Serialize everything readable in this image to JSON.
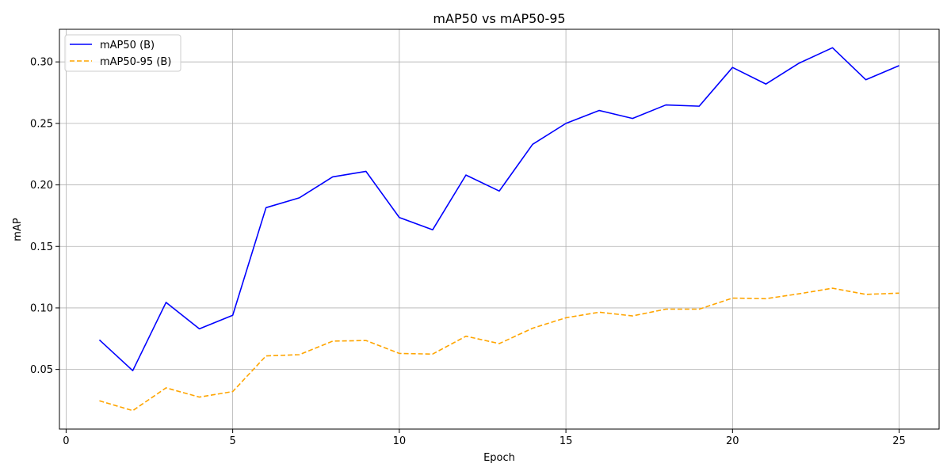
{
  "chart_data": {
    "type": "line",
    "title": "mAP50 vs mAP50-95",
    "xlabel": "Epoch",
    "ylabel": "mAP",
    "x": [
      1,
      2,
      3,
      4,
      5,
      6,
      7,
      8,
      9,
      10,
      11,
      12,
      13,
      14,
      15,
      16,
      17,
      18,
      19,
      20,
      21,
      22,
      23,
      24,
      25
    ],
    "xlim": [
      -0.2,
      26.2
    ],
    "ylim": [
      0.0015,
      0.3265
    ],
    "xticks": [
      0,
      5,
      10,
      15,
      20,
      25
    ],
    "yticks": [
      0.05,
      0.1,
      0.15,
      0.2,
      0.25,
      0.3
    ],
    "xtick_labels": [
      "0",
      "5",
      "10",
      "15",
      "20",
      "25"
    ],
    "ytick_labels": [
      "0.05",
      "0.10",
      "0.15",
      "0.20",
      "0.25",
      "0.30"
    ],
    "grid": true,
    "legend_position": "top-left",
    "series": [
      {
        "name": "mAP50 (B)",
        "color": "#0000ff",
        "style": "solid",
        "values": [
          0.074,
          0.049,
          0.1045,
          0.083,
          0.094,
          0.1815,
          0.1895,
          0.2065,
          0.211,
          0.1735,
          0.1635,
          0.208,
          0.195,
          0.233,
          0.25,
          0.2605,
          0.254,
          0.265,
          0.264,
          0.2955,
          0.282,
          0.299,
          0.3115,
          0.2855,
          0.297
        ]
      },
      {
        "name": "mAP50-95 (B)",
        "color": "#ffa500",
        "style": "dashed",
        "values": [
          0.0245,
          0.0165,
          0.035,
          0.0275,
          0.032,
          0.061,
          0.062,
          0.073,
          0.0735,
          0.063,
          0.0625,
          0.077,
          0.071,
          0.0835,
          0.092,
          0.0965,
          0.0935,
          0.099,
          0.099,
          0.108,
          0.1075,
          0.1115,
          0.116,
          0.111,
          0.112
        ]
      }
    ]
  }
}
